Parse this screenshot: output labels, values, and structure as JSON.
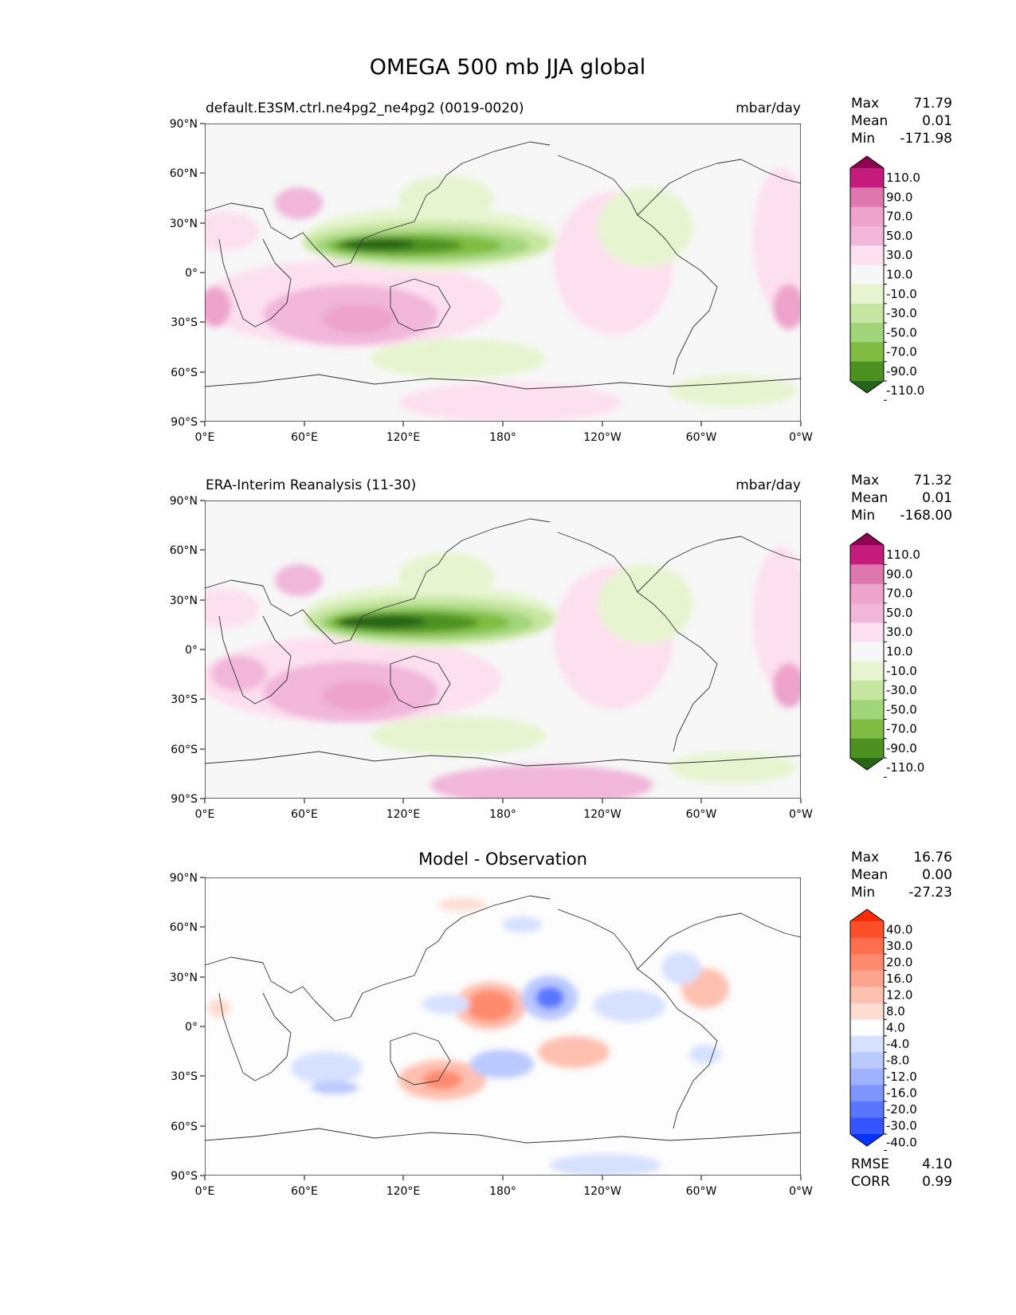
{
  "figure": {
    "title": "OMEGA 500 mb JJA global"
  },
  "axes": {
    "x_ticks": [
      "0°E",
      "60°E",
      "120°E",
      "180°",
      "120°W",
      "60°W",
      "0°W"
    ],
    "y_ticks": [
      "90°N",
      "60°N",
      "30°N",
      "0°",
      "30°S",
      "60°S",
      "90°S"
    ]
  },
  "panels": [
    {
      "id": "model",
      "title_left": "default.E3SM.ctrl.ne4pg2_ne4pg2 (0019-0020)",
      "title_center": "",
      "units": "mbar/day",
      "stats": [
        {
          "label": "Max",
          "value": "71.79"
        },
        {
          "label": "Mean",
          "value": "0.01"
        },
        {
          "label": "Min",
          "value": "-171.98"
        }
      ],
      "colorbar_labels": [
        "110.0",
        "90.0",
        "70.0",
        "50.0",
        "30.0",
        "10.0",
        "-10.0",
        "-30.0",
        "-50.0",
        "-70.0",
        "-90.0",
        "-110.0"
      ],
      "colorbar_colors": [
        "#8e0152",
        "#c51b7d",
        "#de77ae",
        "#eda3cb",
        "#f1b6da",
        "#fde0ef",
        "#f7f7f7",
        "#e6f5d0",
        "#c7e6a1",
        "#a1d57a",
        "#7fbc41",
        "#4d9221",
        "#276419"
      ],
      "footer_stats": []
    },
    {
      "id": "obs",
      "title_left": "ERA-Interim Reanalysis (11-30)",
      "title_center": "",
      "units": "mbar/day",
      "stats": [
        {
          "label": "Max",
          "value": "71.32"
        },
        {
          "label": "Mean",
          "value": "0.01"
        },
        {
          "label": "Min",
          "value": "-168.00"
        }
      ],
      "colorbar_labels": [
        "110.0",
        "90.0",
        "70.0",
        "50.0",
        "30.0",
        "10.0",
        "-10.0",
        "-30.0",
        "-50.0",
        "-70.0",
        "-90.0",
        "-110.0"
      ],
      "colorbar_colors": [
        "#8e0152",
        "#c51b7d",
        "#de77ae",
        "#eda3cb",
        "#f1b6da",
        "#fde0ef",
        "#f7f7f7",
        "#e6f5d0",
        "#c7e6a1",
        "#a1d57a",
        "#7fbc41",
        "#4d9221",
        "#276419"
      ],
      "footer_stats": []
    },
    {
      "id": "diff",
      "title_left": "",
      "title_center": "Model - Observation",
      "units": "",
      "stats": [
        {
          "label": "Max",
          "value": "16.76"
        },
        {
          "label": "Mean",
          "value": "0.00"
        },
        {
          "label": "Min",
          "value": "-27.23"
        }
      ],
      "colorbar_labels": [
        "40.0",
        "30.0",
        "20.0",
        "16.0",
        "12.0",
        "8.0",
        "4.0",
        "-4.0",
        "-8.0",
        "-12.0",
        "-16.0",
        "-20.0",
        "-30.0",
        "-40.0"
      ],
      "colorbar_colors": [
        "#ff2a00",
        "#ff4f2a",
        "#ff6e4d",
        "#ff8a6e",
        "#ffa48e",
        "#ffc0b0",
        "#ffdcd2",
        "#fdfdfd",
        "#d6e0ff",
        "#bac9ff",
        "#9eb2ff",
        "#7f96ff",
        "#5a76ff",
        "#3556ff",
        "#0033ff"
      ],
      "footer_stats": [
        {
          "label": "RMSE",
          "value": "4.10"
        },
        {
          "label": "CORR",
          "value": "0.99"
        }
      ]
    }
  ]
}
